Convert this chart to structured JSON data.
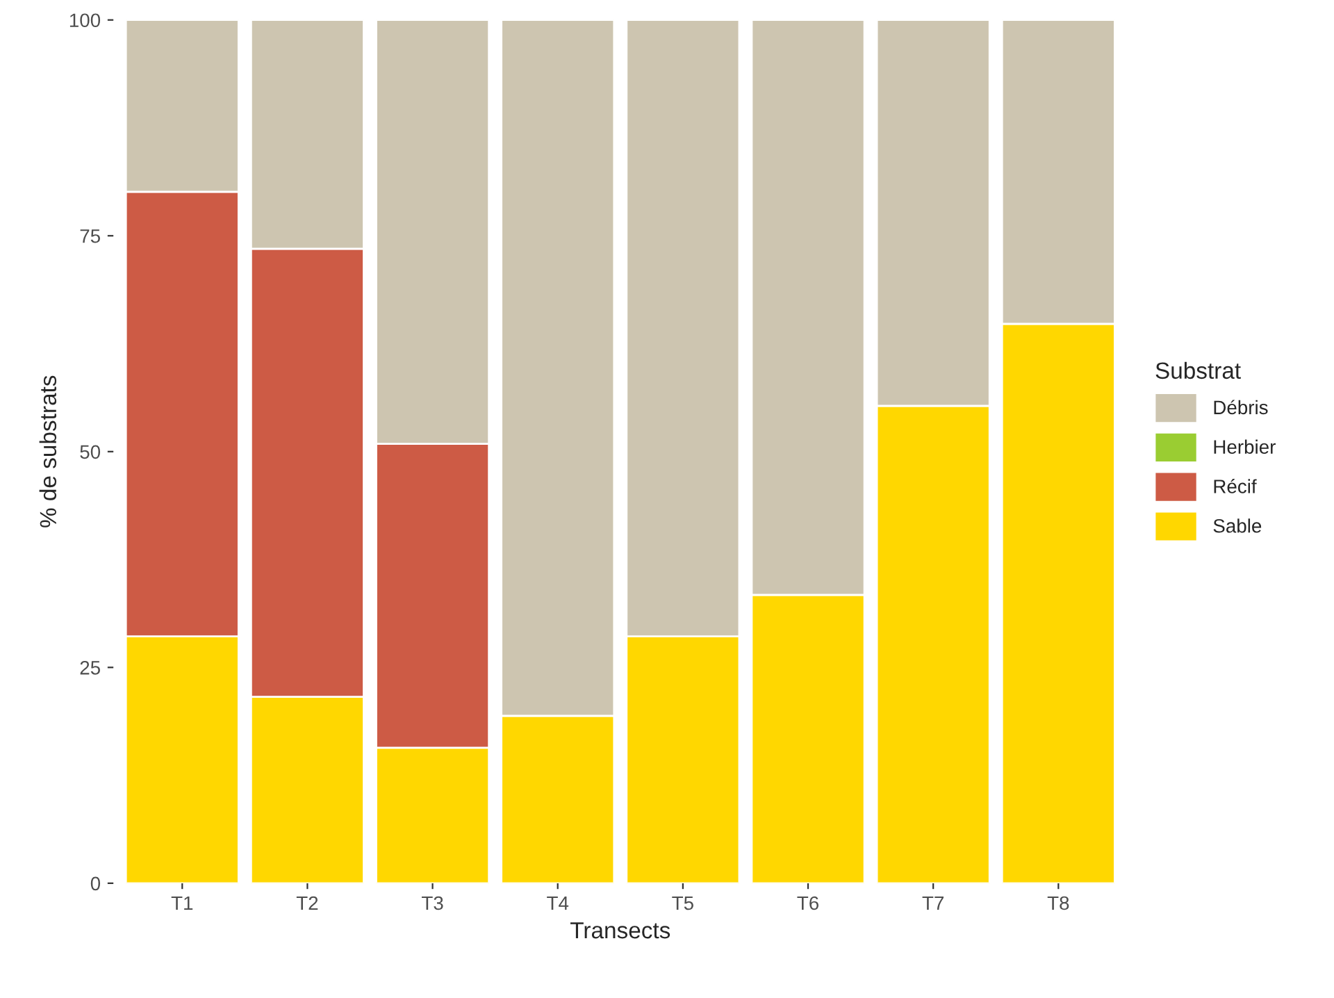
{
  "chart_data": {
    "type": "bar",
    "stacked": true,
    "xlabel": "Transects",
    "ylabel": "% de substrats",
    "legend_title": "Substrat",
    "legend": "right",
    "categories": [
      "T1",
      "T2",
      "T3",
      "T4",
      "T5",
      "T6",
      "T7",
      "T8"
    ],
    "series": [
      {
        "name": "Sable",
        "color": "#ffd700",
        "values": [
          28.6,
          21.6,
          15.7,
          19.4,
          28.6,
          33.4,
          55.3,
          64.8
        ]
      },
      {
        "name": "Récif",
        "color": "#cd5b45",
        "values": [
          51.5,
          51.9,
          35.2,
          0,
          0,
          0,
          0,
          0
        ]
      },
      {
        "name": "Herbier",
        "color": "#9acd32",
        "values": [
          0,
          0,
          0,
          0,
          0,
          0,
          0,
          0
        ]
      },
      {
        "name": "Débris",
        "color": "#cdc5b0",
        "values": [
          19.9,
          26.5,
          49.1,
          80.6,
          71.4,
          66.6,
          44.7,
          35.2
        ]
      }
    ],
    "ylim": [
      0,
      100
    ],
    "yticks": [
      0,
      25,
      50,
      75,
      100
    ],
    "grid": false
  }
}
